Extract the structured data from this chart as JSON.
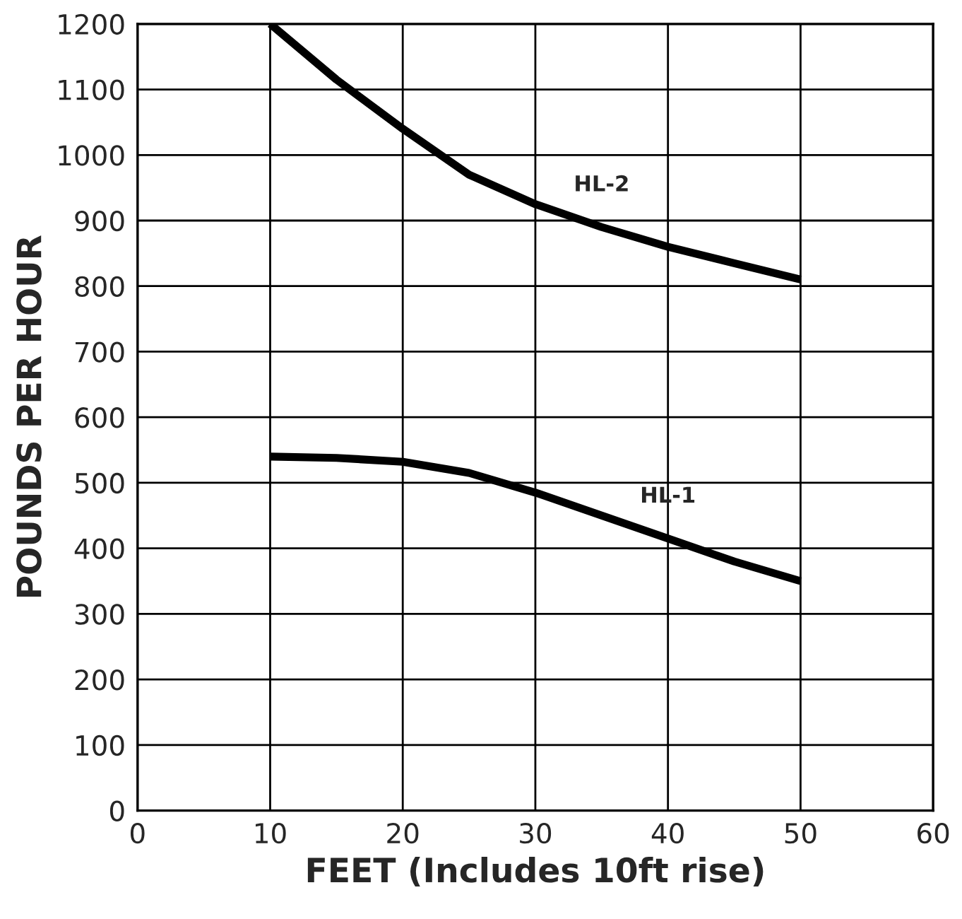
{
  "chart_data": {
    "type": "line",
    "xlabel": "FEET (Includes 10ft rise)",
    "ylabel": "POUNDS PER HOUR",
    "x": [
      10,
      15,
      20,
      25,
      30,
      35,
      40,
      45,
      50
    ],
    "series": [
      {
        "color": "#000000",
        "values": [
          1200,
          1115,
          1040,
          970,
          925,
          890,
          860,
          835,
          810
        ]
      },
      {
        "color": "#000000",
        "values": [
          540,
          538,
          532,
          515,
          485,
          450,
          415,
          380,
          350
        ]
      }
    ],
    "annotations": [
      {
        "text": "HL-2",
        "x": 35,
        "y": 890
      },
      {
        "text": "HL-1",
        "x": 40,
        "y": 415
      }
    ],
    "xlim": [
      0,
      60
    ],
    "ylim": [
      0,
      1200
    ],
    "xticks": [
      0,
      10,
      20,
      30,
      40,
      50,
      60
    ],
    "yticks": [
      0,
      100,
      200,
      300,
      400,
      500,
      600,
      700,
      800,
      900,
      1000,
      1100,
      1200
    ],
    "grid": true,
    "legend": false,
    "marker": "none",
    "line_style": "solid"
  }
}
